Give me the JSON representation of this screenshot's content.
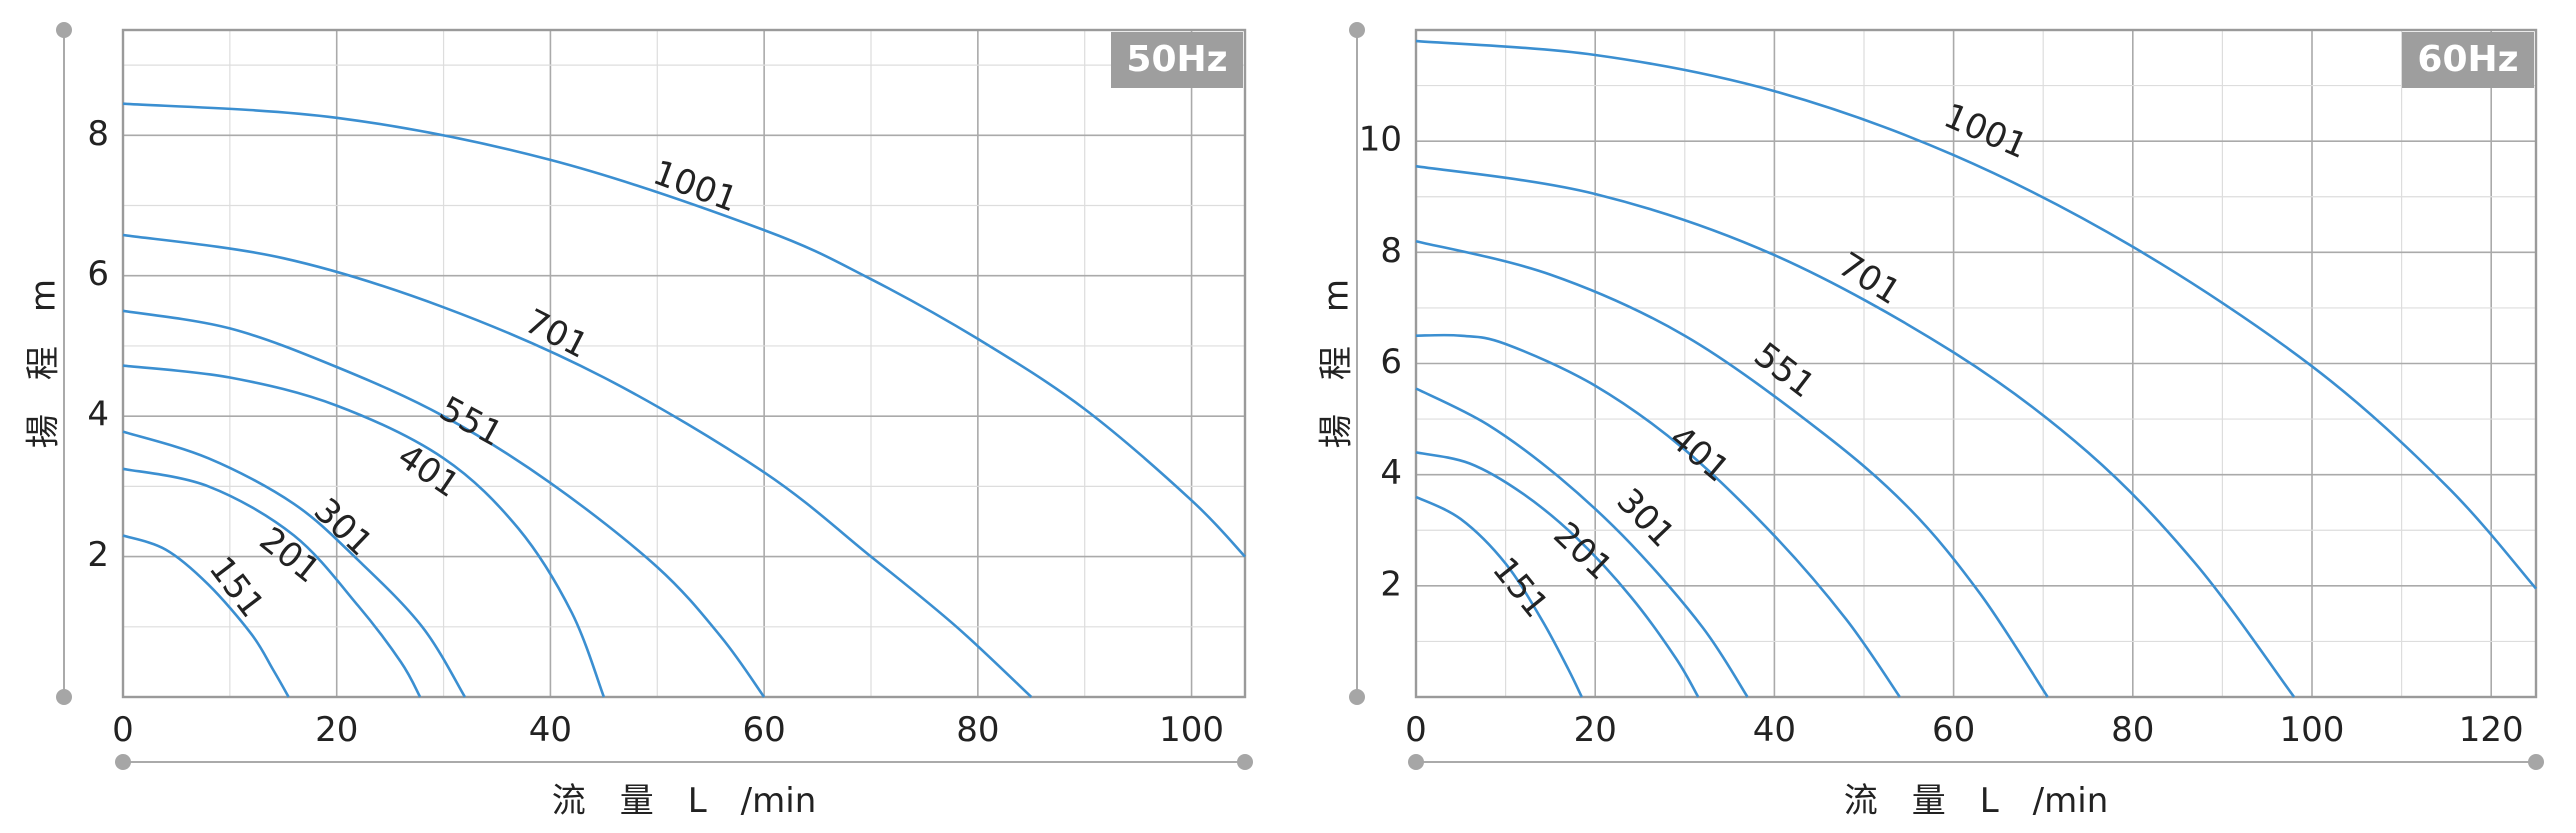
{
  "chart_data": [
    {
      "type": "line",
      "title": "50Hz",
      "xlabel": "流 量 L /min",
      "ylabel": "揚 程 m",
      "xlim": [
        0,
        105
      ],
      "ylim": [
        0,
        9.5
      ],
      "xticks": [
        0,
        20,
        40,
        60,
        80,
        100
      ],
      "yticks": [
        2,
        4,
        6,
        8
      ],
      "grid": true,
      "series": [
        {
          "name": "151",
          "x": [
            0,
            4,
            8,
            12,
            14,
            15.5
          ],
          "y": [
            2.3,
            2.1,
            1.6,
            0.9,
            0.4,
            0
          ]
        },
        {
          "name": "201",
          "x": [
            0,
            8,
            16,
            22,
            26,
            27.8
          ],
          "y": [
            3.25,
            3.0,
            2.3,
            1.3,
            0.5,
            0
          ]
        },
        {
          "name": "301",
          "x": [
            0,
            8,
            16,
            22,
            28,
            32
          ],
          "y": [
            3.78,
            3.4,
            2.75,
            1.95,
            1.0,
            0
          ]
        },
        {
          "name": "401",
          "x": [
            0,
            10,
            20,
            30,
            37,
            42,
            45
          ],
          "y": [
            4.72,
            4.55,
            4.15,
            3.4,
            2.4,
            1.2,
            0
          ]
        },
        {
          "name": "551",
          "x": [
            0,
            10,
            20,
            30,
            40,
            50,
            56,
            60
          ],
          "y": [
            5.5,
            5.25,
            4.7,
            4.0,
            3.05,
            1.85,
            0.85,
            0
          ]
        },
        {
          "name": "701",
          "x": [
            0,
            15,
            30,
            45,
            60,
            70,
            78,
            85
          ],
          "y": [
            6.58,
            6.25,
            5.55,
            4.55,
            3.2,
            2.0,
            1.0,
            0
          ]
        },
        {
          "name": "1001",
          "x": [
            0,
            20,
            40,
            60,
            70,
            80,
            90,
            100,
            105
          ],
          "y": [
            8.45,
            8.25,
            7.65,
            6.65,
            5.95,
            5.1,
            4.1,
            2.8,
            2.0
          ]
        }
      ],
      "labels": [
        {
          "text": "151",
          "x": 10.5,
          "y": 1.55
        },
        {
          "text": "201",
          "x": 15.5,
          "y": 2.0
        },
        {
          "text": "301",
          "x": 20.5,
          "y": 2.4
        },
        {
          "text": "401",
          "x": 28.5,
          "y": 3.2
        },
        {
          "text": "551",
          "x": 32.5,
          "y": 3.9
        },
        {
          "text": "701",
          "x": 40.5,
          "y": 5.15
        },
        {
          "text": "1001",
          "x": 53.5,
          "y": 7.25
        }
      ]
    },
    {
      "type": "line",
      "title": "60Hz",
      "xlabel": "流 量 L /min",
      "ylabel": "揚 程 m",
      "xlim": [
        0,
        125
      ],
      "ylim": [
        0,
        12
      ],
      "xticks": [
        0,
        20,
        40,
        60,
        80,
        100,
        120
      ],
      "yticks": [
        2,
        4,
        6,
        8,
        10
      ],
      "grid": true,
      "series": [
        {
          "name": "151",
          "x": [
            0,
            5,
            10,
            14,
            17,
            18.5
          ],
          "y": [
            3.6,
            3.2,
            2.4,
            1.4,
            0.5,
            0
          ]
        },
        {
          "name": "201",
          "x": [
            0,
            6,
            12,
            18,
            24,
            29,
            31.5
          ],
          "y": [
            4.4,
            4.2,
            3.65,
            2.85,
            1.8,
            0.7,
            0
          ]
        },
        {
          "name": "301",
          "x": [
            0,
            8,
            16,
            24,
            32,
            37
          ],
          "y": [
            5.55,
            4.9,
            3.95,
            2.75,
            1.25,
            0
          ]
        },
        {
          "name": "401",
          "x": [
            0,
            5,
            10,
            20,
            30,
            40,
            48,
            54
          ],
          "y": [
            6.5,
            6.5,
            6.35,
            5.6,
            4.45,
            2.9,
            1.4,
            0
          ]
        },
        {
          "name": "551",
          "x": [
            0,
            15,
            30,
            45,
            55,
            63,
            70.5
          ],
          "y": [
            8.2,
            7.6,
            6.5,
            4.8,
            3.4,
            1.85,
            0
          ]
        },
        {
          "name": "701",
          "x": [
            0,
            20,
            40,
            60,
            75,
            87,
            98
          ],
          "y": [
            9.55,
            9.05,
            7.95,
            6.2,
            4.4,
            2.4,
            0
          ]
        },
        {
          "name": "1001",
          "x": [
            0,
            20,
            40,
            60,
            80,
            100,
            115,
            125
          ],
          "y": [
            11.8,
            11.55,
            10.9,
            9.75,
            8.1,
            5.95,
            3.8,
            1.95
          ]
        }
      ],
      "labels": [
        {
          "text": "151",
          "x": 11.5,
          "y": 1.95
        },
        {
          "text": "201",
          "x": 18.5,
          "y": 2.6
        },
        {
          "text": "301",
          "x": 25.5,
          "y": 3.2
        },
        {
          "text": "401",
          "x": 31.5,
          "y": 4.35
        },
        {
          "text": "551",
          "x": 41.0,
          "y": 5.85
        },
        {
          "text": "701",
          "x": 50.5,
          "y": 7.5
        },
        {
          "text": "1001",
          "x": 63.5,
          "y": 10.15
        }
      ]
    }
  ]
}
